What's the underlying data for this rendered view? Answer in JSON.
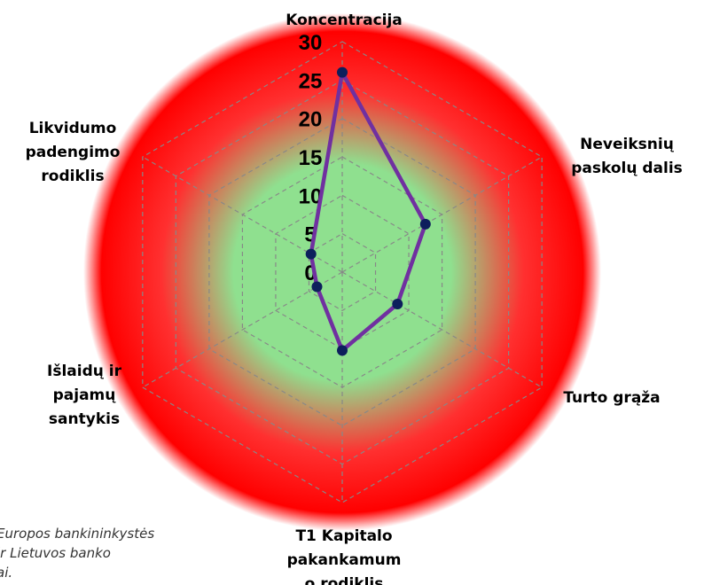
{
  "chart_data": {
    "type": "radar",
    "categories": [
      [
        "Koncentracija"
      ],
      [
        "Neveiksnių",
        "paskolų dalis"
      ],
      [
        "Turto grąža"
      ],
      [
        "T1 Kapitalo",
        "pakankamum",
        "o rodiklis"
      ],
      [
        "Išlaidų ir",
        "pajamų",
        "santykis"
      ],
      [
        "Likvidumo",
        "padengimo",
        "rodiklis"
      ]
    ],
    "series": [
      {
        "color": "#7030a0",
        "marker_color": "#0d1f5c",
        "values": [
          26,
          12.5,
          8.3,
          10.2,
          3.8,
          4.7
        ]
      }
    ],
    "rlim": [
      0,
      30
    ],
    "rticks": [
      0,
      5,
      10,
      15,
      20,
      25,
      30
    ],
    "grid": true,
    "source": [
      "Europos bankininkystės",
      "ir Lietuvos banko",
      "ai."
    ]
  }
}
